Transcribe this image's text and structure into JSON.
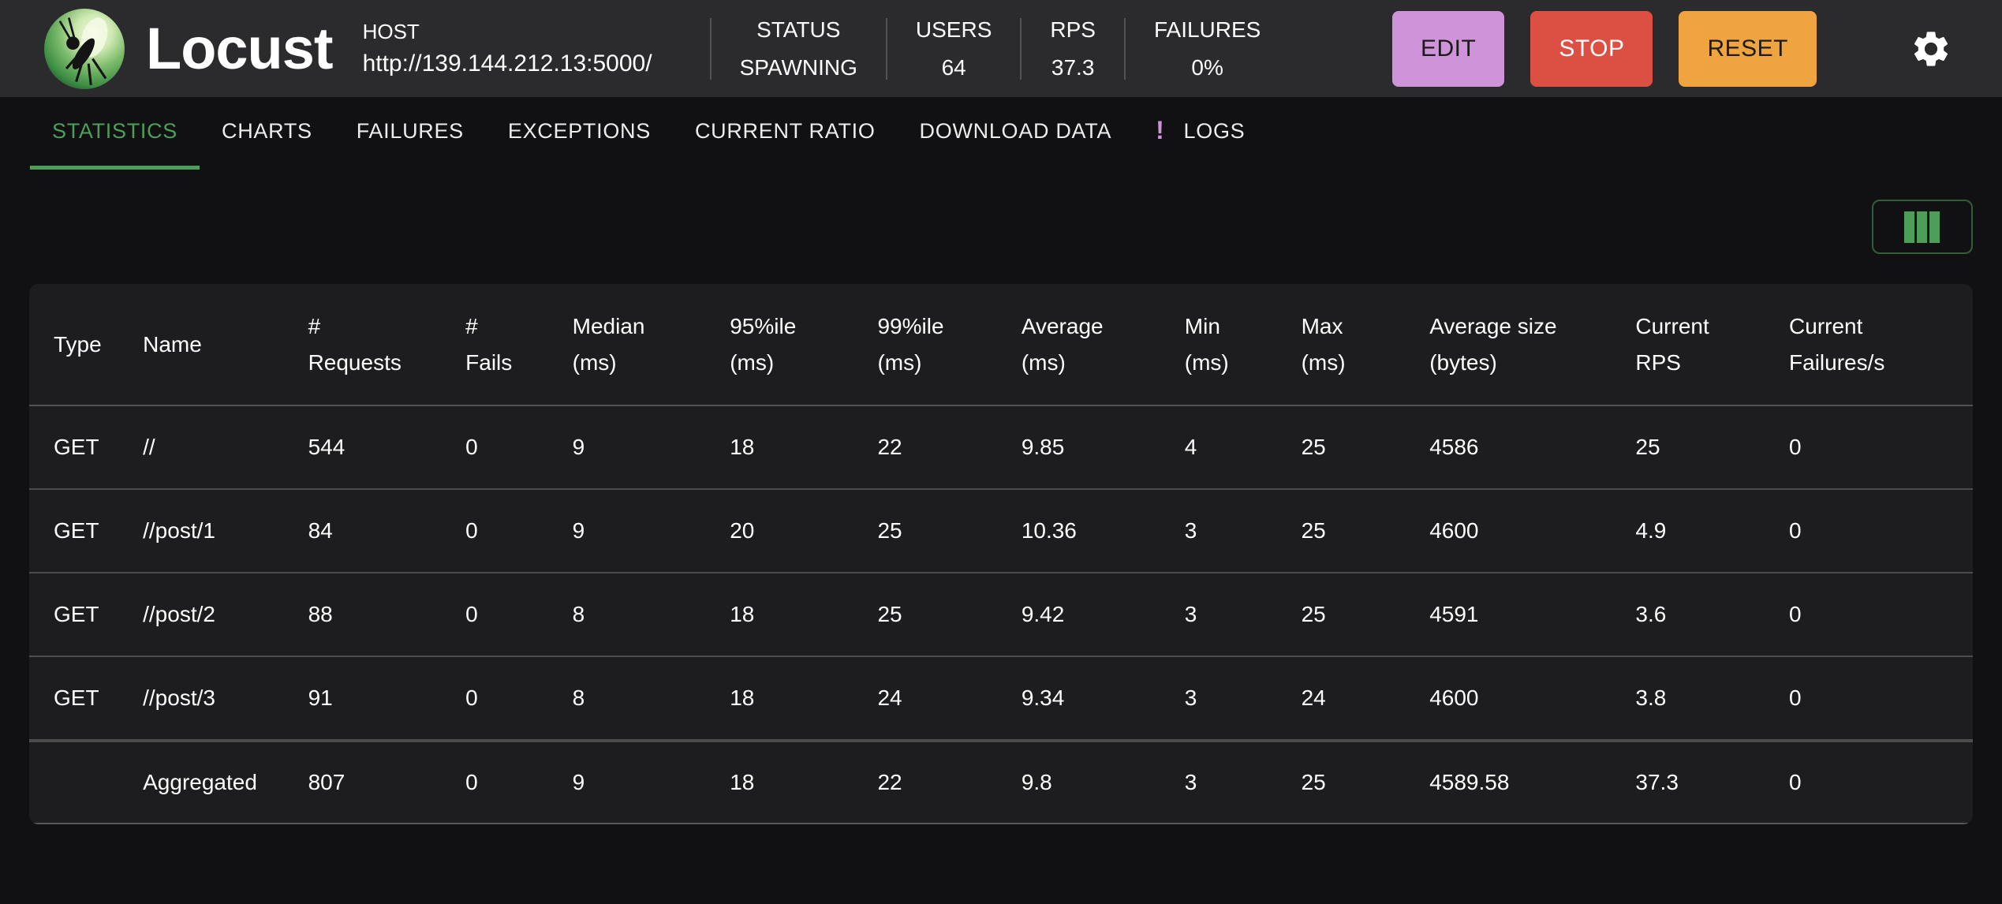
{
  "colors": {
    "accent_green": "#4c9e58",
    "edit_purple": "#ce93d8",
    "stop_red": "#dc4f43",
    "reset_orange": "#efa440",
    "logs_badge_purple": "#ce93d8",
    "header_bg": "#2b2b2d",
    "page_bg": "#111113",
    "panel_bg": "#1d1d1f"
  },
  "header": {
    "brand": "Locust",
    "host_label": "HOST",
    "host_url": "http://139.144.212.13:5000/",
    "stats": [
      {
        "label": "STATUS",
        "value": "SPAWNING"
      },
      {
        "label": "USERS",
        "value": "64"
      },
      {
        "label": "RPS",
        "value": "37.3"
      },
      {
        "label": "FAILURES",
        "value": "0%"
      }
    ],
    "buttons": [
      {
        "label": "EDIT",
        "bg": "#ce93d8",
        "fg": "#1b1b1b"
      },
      {
        "label": "STOP",
        "bg": "#dc4f43",
        "fg": "#ffffff"
      },
      {
        "label": "RESET",
        "bg": "#efa440",
        "fg": "#1b1b1b"
      }
    ],
    "settings_icon": "gear-icon"
  },
  "tabs": [
    {
      "label": "STATISTICS",
      "active": true
    },
    {
      "label": "CHARTS",
      "active": false
    },
    {
      "label": "FAILURES",
      "active": false
    },
    {
      "label": "EXCEPTIONS",
      "active": false
    },
    {
      "label": "CURRENT RATIO",
      "active": false
    },
    {
      "label": "DOWNLOAD DATA",
      "active": false
    },
    {
      "label": "LOGS",
      "active": false,
      "badge": "!",
      "badge_color": "#ce93d8"
    }
  ],
  "toolbar": {
    "columns_button_icon": "columns-icon"
  },
  "table": {
    "columns": [
      {
        "line1": "Type",
        "line2": ""
      },
      {
        "line1": "Name",
        "line2": ""
      },
      {
        "line1": "#",
        "line2": "Requests"
      },
      {
        "line1": "#",
        "line2": "Fails"
      },
      {
        "line1": "Median",
        "line2": "(ms)"
      },
      {
        "line1": "95%ile",
        "line2": "(ms)"
      },
      {
        "line1": "99%ile",
        "line2": "(ms)"
      },
      {
        "line1": "Average",
        "line2": "(ms)"
      },
      {
        "line1": "Min",
        "line2": "(ms)"
      },
      {
        "line1": "Max",
        "line2": "(ms)"
      },
      {
        "line1": "Average size",
        "line2": "(bytes)"
      },
      {
        "line1": "Current",
        "line2": "RPS"
      },
      {
        "line1": "Current",
        "line2": "Failures/s"
      }
    ],
    "rows": [
      [
        "GET",
        "//",
        "544",
        "0",
        "9",
        "18",
        "22",
        "9.85",
        "4",
        "25",
        "4586",
        "25",
        "0"
      ],
      [
        "GET",
        "//post/1",
        "84",
        "0",
        "9",
        "20",
        "25",
        "10.36",
        "3",
        "25",
        "4600",
        "4.9",
        "0"
      ],
      [
        "GET",
        "//post/2",
        "88",
        "0",
        "8",
        "18",
        "25",
        "9.42",
        "3",
        "25",
        "4591",
        "3.6",
        "0"
      ],
      [
        "GET",
        "//post/3",
        "91",
        "0",
        "8",
        "18",
        "24",
        "9.34",
        "3",
        "24",
        "4600",
        "3.8",
        "0"
      ]
    ],
    "footer_row": [
      "",
      "Aggregated",
      "807",
      "0",
      "9",
      "18",
      "22",
      "9.8",
      "3",
      "25",
      "4589.58",
      "37.3",
      "0"
    ]
  }
}
